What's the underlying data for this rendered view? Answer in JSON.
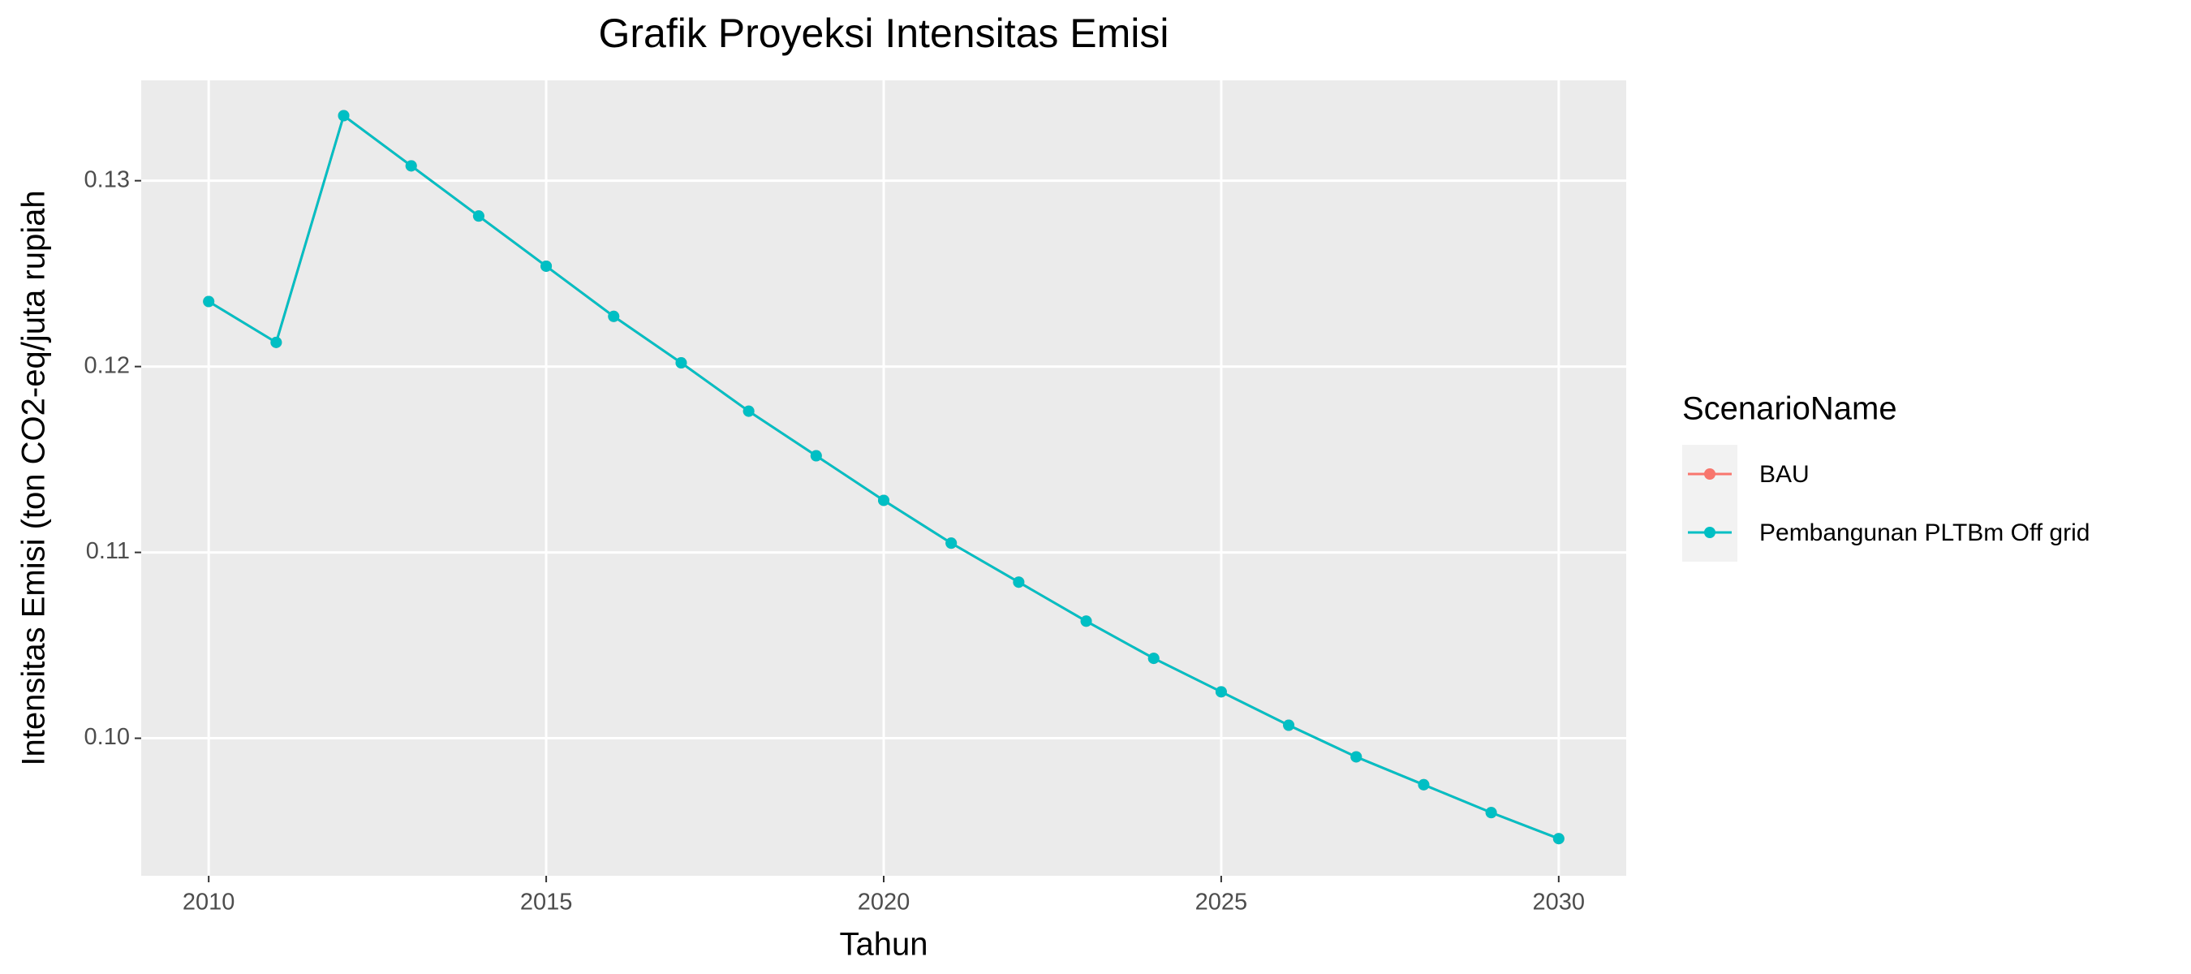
{
  "chart_data": {
    "type": "line",
    "title": "Grafik Proyeksi Intensitas Emisi",
    "x_label": "Tahun",
    "y_label": "Intensitas Emisi (ton CO2-eq/juta rupiah",
    "legend_title": "ScenarioName",
    "legend": "right",
    "grid": true,
    "x": [
      2010,
      2011,
      2012,
      2013,
      2014,
      2015,
      2016,
      2017,
      2018,
      2019,
      2020,
      2021,
      2022,
      2023,
      2024,
      2025,
      2026,
      2027,
      2028,
      2029,
      2030
    ],
    "series": [
      {
        "name": "BAU",
        "color": "#F8766D",
        "values": [
          0.1235,
          0.1213,
          0.1335,
          0.1308,
          0.1281,
          0.1254,
          0.1227,
          0.1202,
          0.1176,
          0.1152,
          0.1128,
          0.1105,
          0.1084,
          0.1063,
          0.1043,
          0.1025,
          0.1007,
          0.099,
          0.0975,
          0.096,
          0.0946
        ]
      },
      {
        "name": "Pembangunan PLTBm Off grid",
        "color": "#00BFC4",
        "values": [
          0.1235,
          0.1213,
          0.1335,
          0.1308,
          0.1281,
          0.1254,
          0.1227,
          0.1202,
          0.1176,
          0.1152,
          0.1128,
          0.1105,
          0.1084,
          0.1063,
          0.1043,
          0.1025,
          0.1007,
          0.099,
          0.0975,
          0.096,
          0.0946
        ]
      }
    ],
    "xlim": [
      2009,
      2031
    ],
    "xticks": [
      2010,
      2015,
      2020,
      2025,
      2030
    ],
    "ylim": [
      0.0926,
      0.1354
    ],
    "yticks": [
      {
        "value": 0.1,
        "label": "0.10"
      },
      0.11,
      0.12,
      0.13
    ]
  }
}
